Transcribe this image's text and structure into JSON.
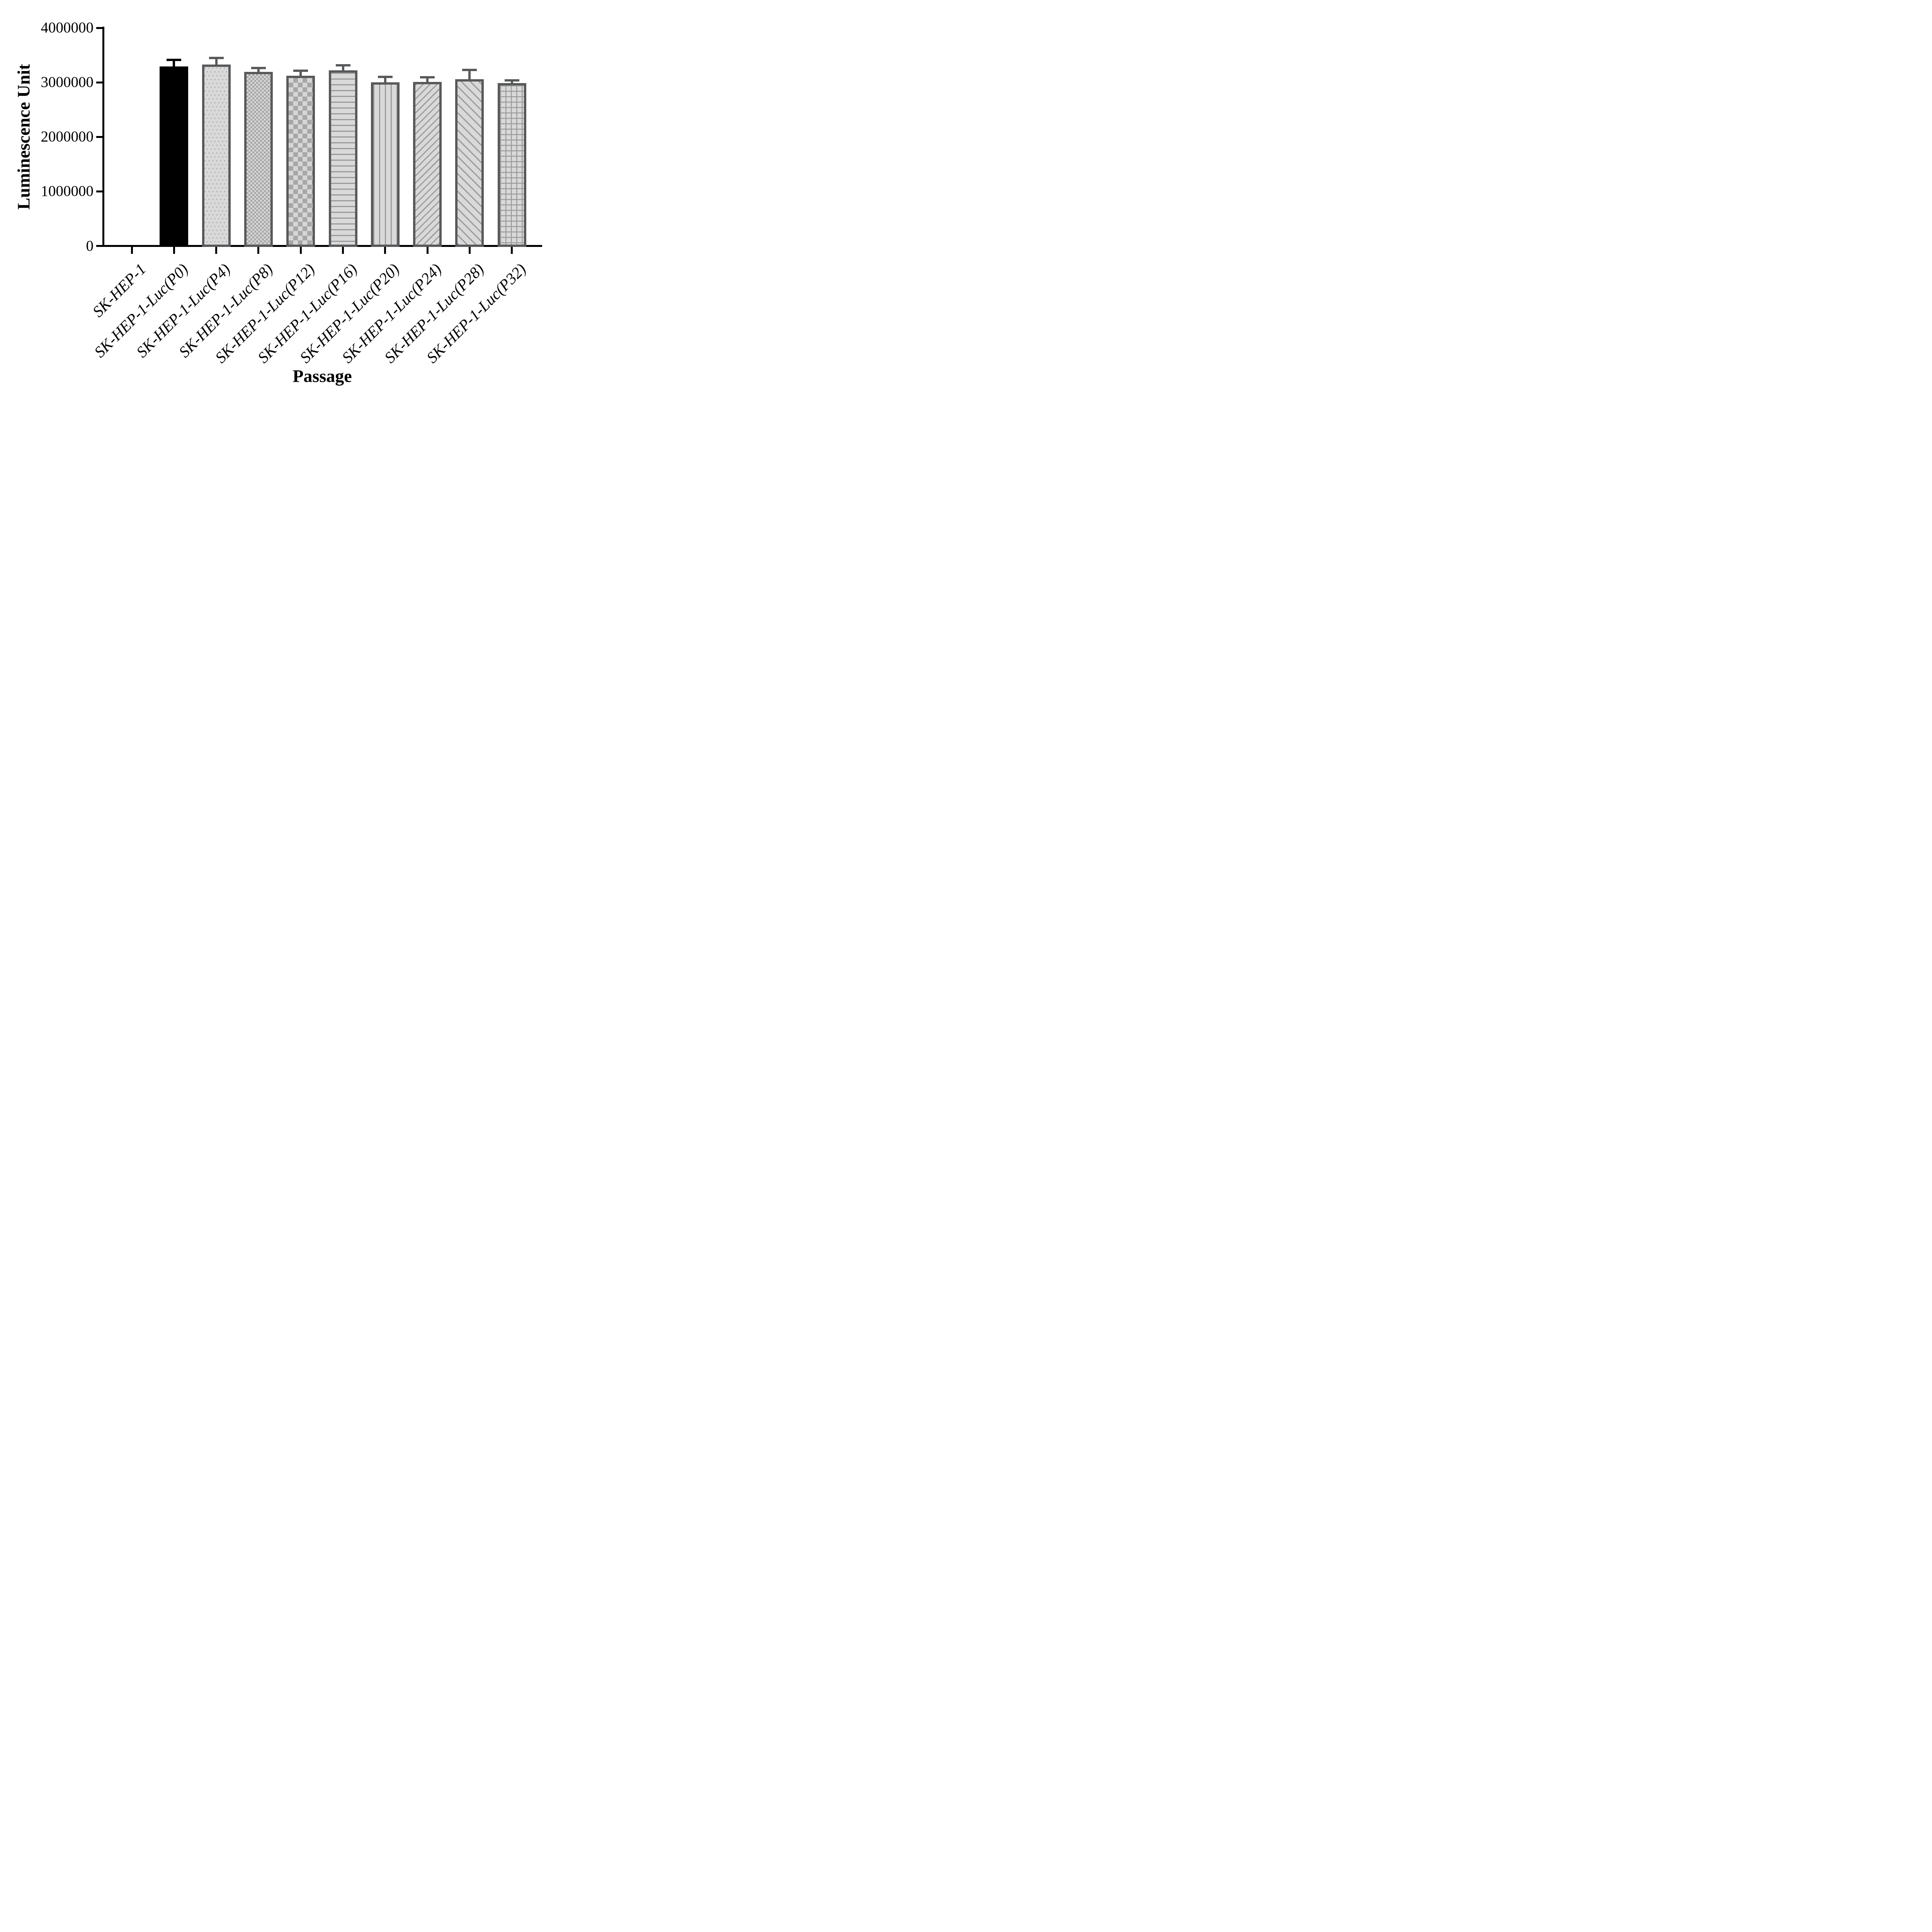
{
  "figure": {
    "background": "#ffffff",
    "y_axis_title": "Luminescence Unit",
    "x_axis_title": "Passage"
  },
  "chart_data": {
    "type": "bar",
    "title": "",
    "xlabel": "Passage",
    "ylabel": "Luminescence Unit",
    "ylim": [
      0,
      4000000
    ],
    "y_ticks": [
      0,
      1000000,
      2000000,
      3000000,
      4000000
    ],
    "grid": false,
    "legend": null,
    "categories": [
      "SK-HEP-1",
      "SK-HEP-1-Luc(P0)",
      "SK-HEP-1-Luc(P4)",
      "SK-HEP-1-Luc(P8)",
      "SK-HEP-1-Luc(P12)",
      "SK-HEP-1-Luc(P16)",
      "SK-HEP-1-Luc(P20)",
      "SK-HEP-1-Luc(P24)",
      "SK-HEP-1-Luc(P28)",
      "SK-HEP-1-Luc(P32)"
    ],
    "values": [
      0,
      3290000,
      3330000,
      3190000,
      3120000,
      3220000,
      3000000,
      3010000,
      3060000,
      2990000
    ],
    "errors_plus_sd": [
      0,
      120000,
      115000,
      70000,
      90000,
      90000,
      100000,
      85000,
      165000,
      45000
    ],
    "bar_patterns": [
      "none",
      "solid-black",
      "dots",
      "checker-fine",
      "checker-large",
      "hlines",
      "vlines",
      "diag-up",
      "diag-down",
      "grid"
    ]
  },
  "colors": {
    "axis": "#000000",
    "black_bar": "#000000",
    "bar_fill_light": "#d9d9d9",
    "pattern_gray": "#9b9b9b",
    "bar_border": "#58595b",
    "error_bar_patterned": "#58595b",
    "error_bar_black": "#000000"
  }
}
